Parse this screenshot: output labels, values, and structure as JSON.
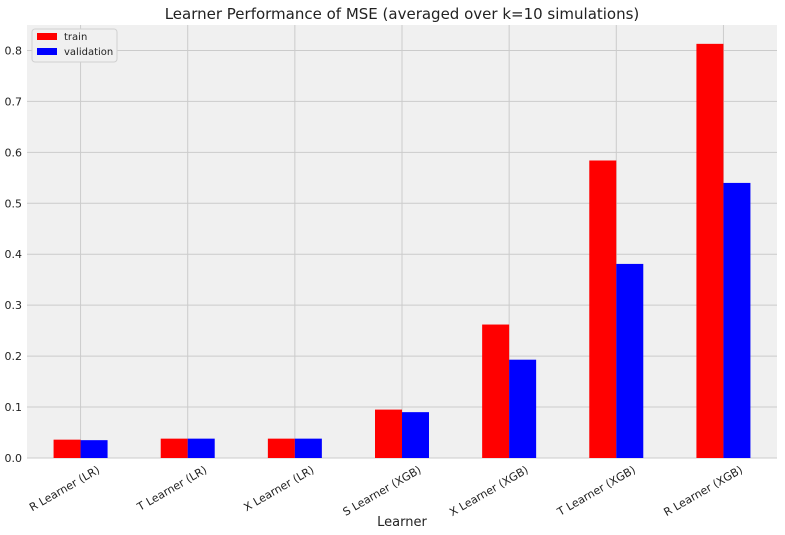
{
  "chart_data": {
    "type": "bar",
    "title": "Learner Performance of MSE (averaged over k=10 simulations)",
    "xlabel": "Learner",
    "ylabel": "",
    "categories": [
      "R Learner (LR)",
      "T Learner (LR)",
      "X Learner (LR)",
      "S Learner (XGB)",
      "X Learner (XGB)",
      "T Learner (XGB)",
      "R Learner (XGB)"
    ],
    "series": [
      {
        "name": "train",
        "color": "#ff0000",
        "values": [
          0.036,
          0.038,
          0.038,
          0.095,
          0.262,
          0.584,
          0.813
        ]
      },
      {
        "name": "validation",
        "color": "#0000ff",
        "values": [
          0.035,
          0.038,
          0.038,
          0.09,
          0.193,
          0.381,
          0.54
        ]
      }
    ],
    "ylim": [
      0,
      0.85
    ],
    "yticks": [
      "0.0",
      "0.1",
      "0.2",
      "0.3",
      "0.4",
      "0.5",
      "0.6",
      "0.7",
      "0.8"
    ],
    "grid": true,
    "legend_position": "top-left",
    "colors": {
      "background": "#f0f0f0",
      "grid": "#cbcbcb"
    }
  }
}
